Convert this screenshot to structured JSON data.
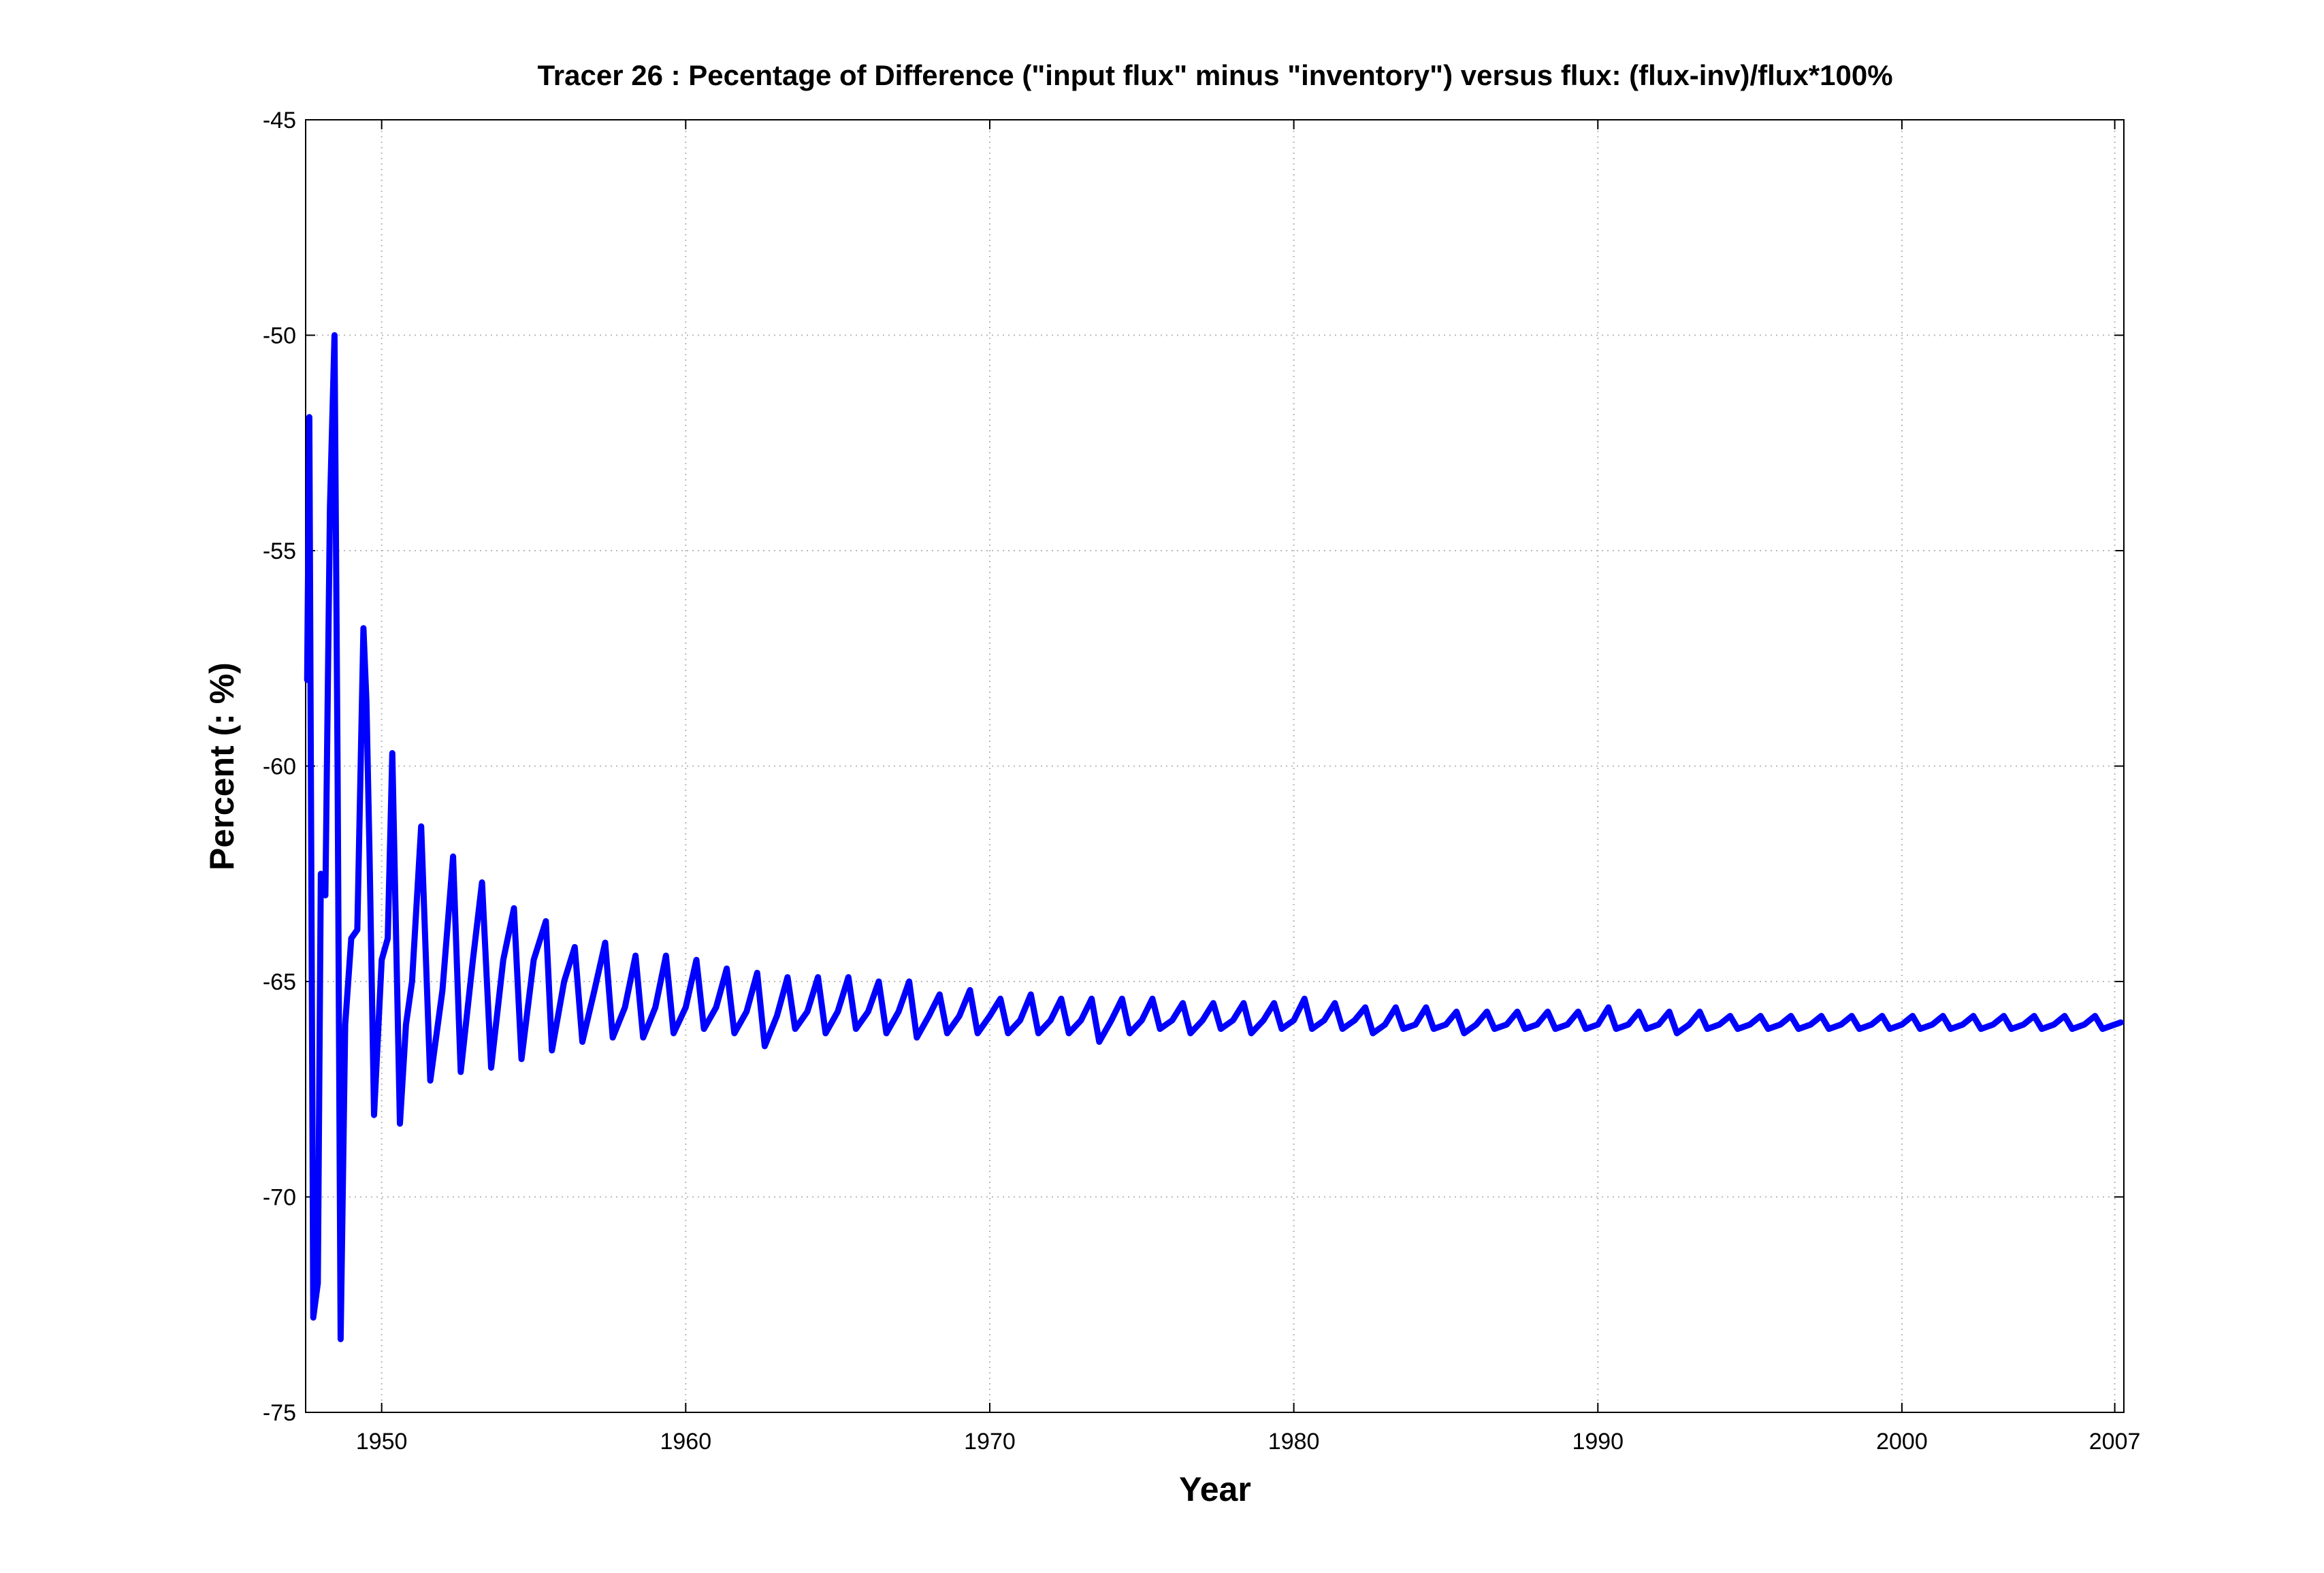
{
  "chart_data": {
    "type": "line",
    "title": "Tracer 26 : Pecentage of Difference (\"input flux\" minus \"inventory\") versus flux: (flux-inv)/flux*100%",
    "xlabel": "Year",
    "ylabel": "Percent (: %)",
    "xlim": [
      1947.5,
      2007.3
    ],
    "ylim": [
      -75,
      -45
    ],
    "xticks": [
      1950,
      1960,
      1970,
      1980,
      1990,
      2000,
      2007
    ],
    "yticks": [
      -75,
      -70,
      -65,
      -60,
      -55,
      -50,
      -45
    ],
    "grid": true,
    "x": [
      1947.55,
      1947.62,
      1947.75,
      1947.9,
      1948.0,
      1948.15,
      1948.3,
      1948.45,
      1948.55,
      1948.65,
      1948.8,
      1949.0,
      1949.2,
      1949.4,
      1949.5,
      1949.6,
      1949.75,
      1950.0,
      1950.2,
      1950.35,
      1950.6,
      1950.8,
      1951.0,
      1951.3,
      1951.6,
      1952.0,
      1952.35,
      1952.6,
      1953.0,
      1953.3,
      1953.6,
      1954.0,
      1954.35,
      1954.6,
      1955.0,
      1955.4,
      1955.6,
      1956.0,
      1956.35,
      1956.6,
      1957.0,
      1957.35,
      1957.6,
      1958.0,
      1958.35,
      1958.6,
      1959.0,
      1959.35,
      1959.6,
      1960.0,
      1960.35,
      1960.6,
      1961.0,
      1961.35,
      1961.6,
      1962.0,
      1962.35,
      1962.6,
      1963.0,
      1963.35,
      1963.6,
      1964.0,
      1964.35,
      1964.6,
      1965.0,
      1965.35,
      1965.6,
      1966.0,
      1966.35,
      1966.6,
      1967.0,
      1967.35,
      1967.6,
      1968.0,
      1968.35,
      1968.6,
      1969.0,
      1969.35,
      1969.6,
      1970.0,
      1970.35,
      1970.6,
      1971.0,
      1971.35,
      1971.6,
      1972.0,
      1972.35,
      1972.6,
      1973.0,
      1973.35,
      1973.6,
      1974.0,
      1974.35,
      1974.6,
      1975.0,
      1975.35,
      1975.6,
      1976.0,
      1976.35,
      1976.6,
      1977.0,
      1977.35,
      1977.6,
      1978.0,
      1978.35,
      1978.6,
      1979.0,
      1979.35,
      1979.6,
      1980.0,
      1980.35,
      1980.6,
      1981.0,
      1981.35,
      1981.6,
      1982.0,
      1982.35,
      1982.6,
      1983.0,
      1983.35,
      1983.6,
      1984.0,
      1984.35,
      1984.6,
      1985.0,
      1985.35,
      1985.6,
      1986.0,
      1986.35,
      1986.6,
      1987.0,
      1987.35,
      1987.6,
      1988.0,
      1988.35,
      1988.6,
      1989.0,
      1989.35,
      1989.6,
      1990.0,
      1990.35,
      1990.6,
      1991.0,
      1991.35,
      1991.6,
      1992.0,
      1992.35,
      1992.6,
      1993.0,
      1993.35,
      1993.6,
      1994.0,
      1994.35,
      1994.6,
      1995.0,
      1995.35,
      1995.6,
      1996.0,
      1996.35,
      1996.6,
      1997.0,
      1997.35,
      1997.6,
      1998.0,
      1998.35,
      1998.6,
      1999.0,
      1999.35,
      1999.6,
      2000.0,
      2000.35,
      2000.6,
      2001.0,
      2001.35,
      2001.6,
      2002.0,
      2002.35,
      2002.6,
      2003.0,
      2003.35,
      2003.6,
      2004.0,
      2004.35,
      2004.6,
      2005.0,
      2005.35,
      2005.6,
      2006.0,
      2006.35,
      2006.6,
      2007.0,
      2007.2
    ],
    "series": [
      {
        "name": "Tracer 26",
        "color": "#0000ff",
        "values": [
          -58,
          -51.9,
          -72.8,
          -72,
          -62.5,
          -63,
          -54,
          -50,
          -60,
          -73.3,
          -66,
          -64,
          -63.8,
          -56.8,
          -58.5,
          -62,
          -68.1,
          -64.5,
          -64,
          -59.7,
          -68.3,
          -66,
          -65,
          -61.4,
          -67.3,
          -65.2,
          -62.1,
          -67.1,
          -64.5,
          -62.7,
          -67,
          -64.5,
          -63.3,
          -66.8,
          -64.5,
          -63.6,
          -66.6,
          -65,
          -64.2,
          -66.4,
          -65.2,
          -64.1,
          -66.3,
          -65.6,
          -64.4,
          -66.3,
          -65.6,
          -64.4,
          -66.2,
          -65.6,
          -64.5,
          -66.1,
          -65.6,
          -64.7,
          -66.2,
          -65.7,
          -64.8,
          -66.5,
          -65.8,
          -64.9,
          -66.1,
          -65.7,
          -64.9,
          -66.2,
          -65.7,
          -64.9,
          -66.1,
          -65.7,
          -65.0,
          -66.2,
          -65.7,
          -65.0,
          -66.3,
          -65.8,
          -65.3,
          -66.2,
          -65.8,
          -65.2,
          -66.2,
          -65.8,
          -65.4,
          -66.2,
          -65.9,
          -65.3,
          -66.2,
          -65.9,
          -65.4,
          -66.2,
          -65.9,
          -65.4,
          -66.4,
          -65.9,
          -65.4,
          -66.2,
          -65.9,
          -65.4,
          -66.1,
          -65.9,
          -65.5,
          -66.2,
          -65.9,
          -65.5,
          -66.1,
          -65.9,
          -65.5,
          -66.2,
          -65.9,
          -65.5,
          -66.1,
          -65.9,
          -65.4,
          -66.1,
          -65.9,
          -65.5,
          -66.1,
          -65.9,
          -65.6,
          -66.2,
          -66.0,
          -65.6,
          -66.1,
          -66.0,
          -65.6,
          -66.1,
          -66.0,
          -65.7,
          -66.2,
          -66.0,
          -65.7,
          -66.1,
          -66.0,
          -65.7,
          -66.1,
          -66.0,
          -65.7,
          -66.1,
          -66.0,
          -65.7,
          -66.1,
          -66.0,
          -65.6,
          -66.1,
          -66.0,
          -65.7,
          -66.1,
          -66.0,
          -65.7,
          -66.2,
          -66.0,
          -65.7,
          -66.1,
          -66.0,
          -65.8,
          -66.1,
          -66.0,
          -65.8,
          -66.1,
          -66.0,
          -65.8,
          -66.1,
          -66.0,
          -65.8,
          -66.1,
          -66.0,
          -65.8,
          -66.1,
          -66.0,
          -65.8,
          -66.1,
          -66.0,
          -65.8,
          -66.1,
          -66.0,
          -65.8,
          -66.1,
          -66.0,
          -65.8,
          -66.1,
          -66.0,
          -65.8,
          -66.1,
          -66.0,
          -65.8,
          -66.1,
          -66.0,
          -65.8,
          -66.1,
          -66.0,
          -65.8,
          -66.1,
          -66.0,
          -65.95
        ]
      }
    ]
  }
}
